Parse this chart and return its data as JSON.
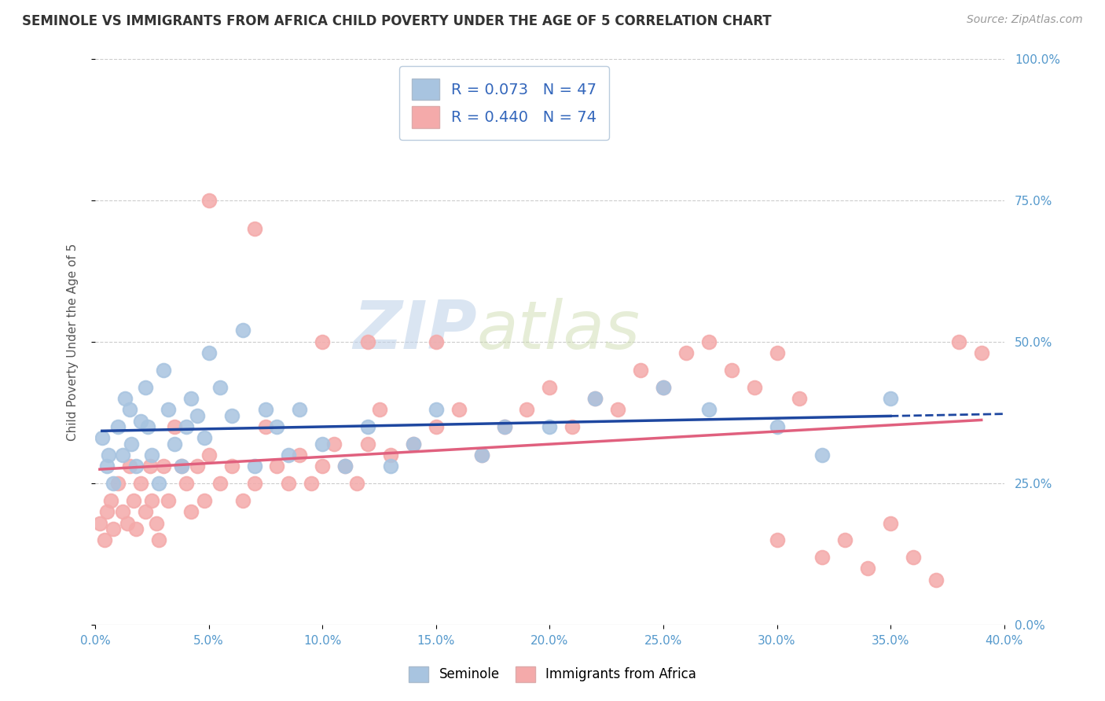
{
  "title": "SEMINOLE VS IMMIGRANTS FROM AFRICA CHILD POVERTY UNDER THE AGE OF 5 CORRELATION CHART",
  "source": "Source: ZipAtlas.com",
  "ylabel": "Child Poverty Under the Age of 5",
  "xlim": [
    0.0,
    40.0
  ],
  "ylim": [
    0.0,
    100.0
  ],
  "yticks": [
    0.0,
    25.0,
    50.0,
    75.0,
    100.0
  ],
  "xticks": [
    0.0,
    5.0,
    10.0,
    15.0,
    20.0,
    25.0,
    30.0,
    35.0,
    40.0
  ],
  "seminole_R": 0.073,
  "seminole_N": 47,
  "africa_R": 0.44,
  "africa_N": 74,
  "seminole_color": "#A8C4E0",
  "africa_color": "#F4AAAA",
  "trend_seminole_color": "#1E47A0",
  "trend_africa_color": "#E0607E",
  "background_color": "#FFFFFF",
  "grid_color": "#CCCCCC",
  "watermark_zip": "ZIP",
  "watermark_atlas": "atlas",
  "seminole_x": [
    0.3,
    0.5,
    0.6,
    0.8,
    1.0,
    1.2,
    1.3,
    1.5,
    1.6,
    1.8,
    2.0,
    2.2,
    2.3,
    2.5,
    2.8,
    3.0,
    3.2,
    3.5,
    3.8,
    4.0,
    4.2,
    4.5,
    4.8,
    5.0,
    5.5,
    6.0,
    6.5,
    7.0,
    7.5,
    8.0,
    8.5,
    9.0,
    10.0,
    11.0,
    12.0,
    13.0,
    14.0,
    15.0,
    17.0,
    18.0,
    20.0,
    22.0,
    25.0,
    27.0,
    30.0,
    32.0,
    35.0
  ],
  "seminole_y": [
    33.0,
    28.0,
    30.0,
    25.0,
    35.0,
    30.0,
    40.0,
    38.0,
    32.0,
    28.0,
    36.0,
    42.0,
    35.0,
    30.0,
    25.0,
    45.0,
    38.0,
    32.0,
    28.0,
    35.0,
    40.0,
    37.0,
    33.0,
    48.0,
    42.0,
    37.0,
    52.0,
    28.0,
    38.0,
    35.0,
    30.0,
    38.0,
    32.0,
    28.0,
    35.0,
    28.0,
    32.0,
    38.0,
    30.0,
    35.0,
    35.0,
    40.0,
    42.0,
    38.0,
    35.0,
    30.0,
    40.0
  ],
  "africa_x": [
    0.2,
    0.4,
    0.5,
    0.7,
    0.8,
    1.0,
    1.2,
    1.4,
    1.5,
    1.7,
    1.8,
    2.0,
    2.2,
    2.4,
    2.5,
    2.7,
    2.8,
    3.0,
    3.2,
    3.5,
    3.8,
    4.0,
    4.2,
    4.5,
    4.8,
    5.0,
    5.5,
    6.0,
    6.5,
    7.0,
    7.5,
    8.0,
    8.5,
    9.0,
    9.5,
    10.0,
    10.5,
    11.0,
    11.5,
    12.0,
    12.5,
    13.0,
    14.0,
    15.0,
    16.0,
    17.0,
    18.0,
    19.0,
    20.0,
    21.0,
    22.0,
    23.0,
    24.0,
    25.0,
    26.0,
    27.0,
    28.0,
    29.0,
    30.0,
    31.0,
    32.0,
    33.0,
    34.0,
    35.0,
    36.0,
    37.0,
    38.0,
    39.0,
    5.0,
    7.0,
    10.0,
    12.0,
    15.0,
    30.0
  ],
  "africa_y": [
    18.0,
    15.0,
    20.0,
    22.0,
    17.0,
    25.0,
    20.0,
    18.0,
    28.0,
    22.0,
    17.0,
    25.0,
    20.0,
    28.0,
    22.0,
    18.0,
    15.0,
    28.0,
    22.0,
    35.0,
    28.0,
    25.0,
    20.0,
    28.0,
    22.0,
    30.0,
    25.0,
    28.0,
    22.0,
    25.0,
    35.0,
    28.0,
    25.0,
    30.0,
    25.0,
    28.0,
    32.0,
    28.0,
    25.0,
    32.0,
    38.0,
    30.0,
    32.0,
    35.0,
    38.0,
    30.0,
    35.0,
    38.0,
    42.0,
    35.0,
    40.0,
    38.0,
    45.0,
    42.0,
    48.0,
    50.0,
    45.0,
    42.0,
    48.0,
    40.0,
    12.0,
    15.0,
    10.0,
    18.0,
    12.0,
    8.0,
    50.0,
    48.0,
    75.0,
    70.0,
    50.0,
    50.0,
    50.0,
    15.0
  ]
}
